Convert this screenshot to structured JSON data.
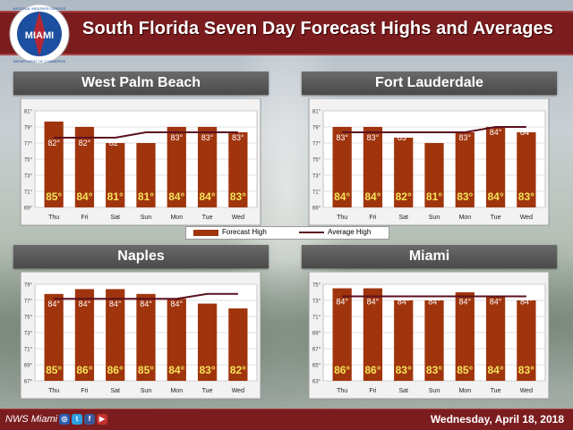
{
  "header": {
    "title": "South Florida Seven Day Forecast Highs and Averages"
  },
  "logo": {
    "text_top": "NATIONAL WEATHER SERVICE",
    "text_center": "MIAMI",
    "text_bottom": "DEPARTMENT OF COMMERCE"
  },
  "legend": {
    "forecast": "Forecast High",
    "average": "Average High"
  },
  "footer": {
    "left": "NWS Miami",
    "date": "Wednesday, April 18, 2018"
  },
  "colors": {
    "bar": "#a0350d",
    "line": "#5a1020",
    "header": "#7b1d1f",
    "value_text": "#f5e35a"
  },
  "chart_data": [
    {
      "type": "bar",
      "title": "West Palm Beach",
      "categories": [
        "Thu",
        "Fri",
        "Sat",
        "Sun",
        "Mon",
        "Tue",
        "Wed"
      ],
      "series": [
        {
          "name": "Forecast High",
          "values": [
            85,
            84,
            81,
            81,
            84,
            84,
            83
          ]
        },
        {
          "name": "Average High",
          "type": "line",
          "values": [
            82,
            82,
            82,
            83,
            83,
            83,
            83
          ]
        }
      ],
      "yticks": [
        "69°",
        "71°",
        "73°",
        "75°",
        "77°",
        "79°",
        "81°"
      ],
      "ylim": [
        69,
        87
      ]
    },
    {
      "type": "bar",
      "title": "Fort Lauderdale",
      "categories": [
        "Thu",
        "Fri",
        "Sat",
        "Sun",
        "Mon",
        "Tue",
        "Wed"
      ],
      "series": [
        {
          "name": "Forecast High",
          "values": [
            84,
            84,
            82,
            81,
            83,
            84,
            83
          ]
        },
        {
          "name": "Average High",
          "type": "line",
          "values": [
            83,
            83,
            83,
            83,
            83,
            84,
            84
          ]
        }
      ],
      "yticks": [
        "69°",
        "71°",
        "73°",
        "75°",
        "77°",
        "79°",
        "81°"
      ],
      "ylim": [
        69,
        87
      ]
    },
    {
      "type": "bar",
      "title": "Naples",
      "categories": [
        "Thu",
        "Fri",
        "Sat",
        "Sun",
        "Mon",
        "Tue",
        "Wed"
      ],
      "series": [
        {
          "name": "Forecast High",
          "values": [
            85,
            86,
            86,
            85,
            84,
            83,
            82
          ]
        },
        {
          "name": "Average High",
          "type": "line",
          "values": [
            84,
            84,
            84,
            84,
            84,
            85,
            85
          ]
        }
      ],
      "yticks": [
        "67°",
        "69°",
        "71°",
        "73°",
        "75°",
        "77°",
        "79°"
      ],
      "ylim": [
        67,
        87
      ]
    },
    {
      "type": "bar",
      "title": "Miami",
      "categories": [
        "Thu",
        "Fri",
        "Sat",
        "Sun",
        "Mon",
        "Tue",
        "Wed"
      ],
      "series": [
        {
          "name": "Forecast High",
          "values": [
            86,
            86,
            83,
            83,
            85,
            84,
            83
          ]
        },
        {
          "name": "Average High",
          "type": "line",
          "values": [
            84,
            84,
            84,
            84,
            84,
            84,
            84
          ]
        }
      ],
      "yticks": [
        "63°",
        "65°",
        "67°",
        "69°",
        "71°",
        "73°",
        "75°"
      ],
      "ylim": [
        63,
        87
      ]
    }
  ]
}
